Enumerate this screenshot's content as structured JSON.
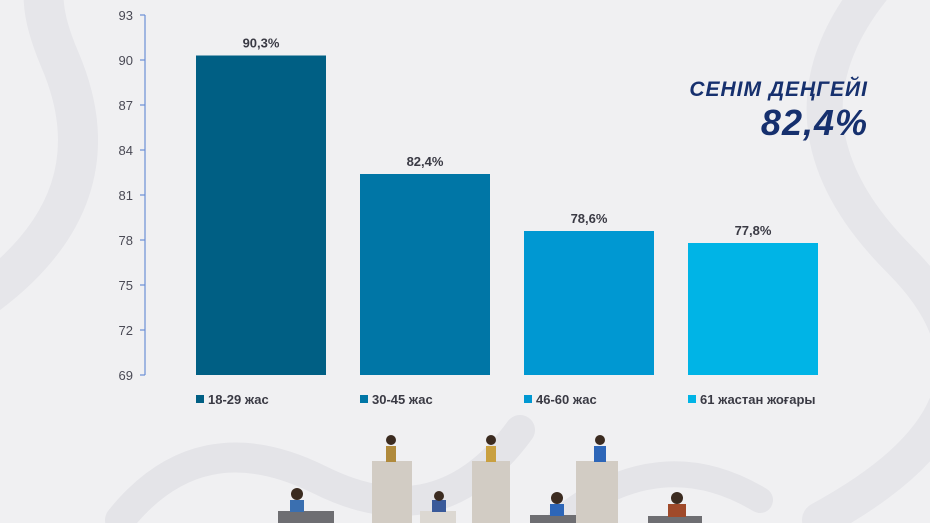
{
  "headline": {
    "title": "СЕНІМ ДЕҢГЕЙІ",
    "value": "82,4%"
  },
  "colors": {
    "background": "#f0f0f2",
    "axis": "#6b8fd6",
    "headline": "#16306e",
    "series": [
      "#005f84",
      "#0076a6",
      "#0098d2",
      "#00b4e6"
    ]
  },
  "chart_data": {
    "type": "bar",
    "title": "",
    "xlabel": "",
    "ylabel": "",
    "ylim": [
      69,
      93
    ],
    "yticks": [
      93,
      90,
      87,
      84,
      81,
      78,
      75,
      72,
      69
    ],
    "grid": false,
    "legend_position": "bottom",
    "categories": [
      "18-29 жас",
      "30-45 жас",
      "46-60 жас",
      "61 жастан жоғары"
    ],
    "values": [
      90.3,
      82.4,
      78.6,
      77.8
    ],
    "value_labels": [
      "90,3%",
      "82,4%",
      "78,6%",
      "77,8%"
    ]
  }
}
